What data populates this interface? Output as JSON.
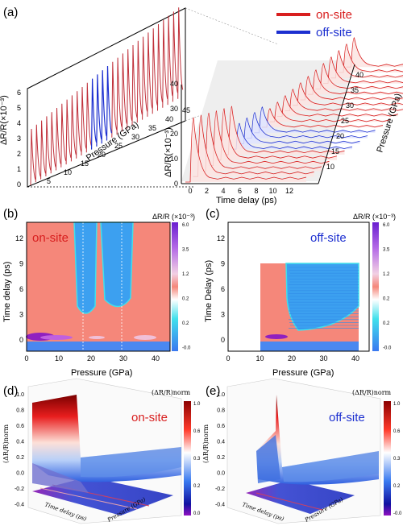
{
  "legend": {
    "onsite": {
      "label": "on-site",
      "color": "#d81e1e"
    },
    "offsite": {
      "label": "off-site",
      "color": "#1c2fd0"
    }
  },
  "panel_a": {
    "label": "(a)",
    "left_axis": {
      "label": "ΔR/R(×10⁻³)",
      "ticks": [
        "0",
        "1",
        "2",
        "3",
        "4",
        "5",
        "6"
      ]
    },
    "pressure_axis": {
      "label": "Pressure (GPa)",
      "ticks": [
        "5",
        "10",
        "15",
        "20",
        "25",
        "30",
        "35",
        "40",
        "45"
      ]
    },
    "right_axis": {
      "label": "ΔR/R(×10⁻³)",
      "ticks": [
        "0",
        "10",
        "20",
        "30",
        "40"
      ]
    },
    "time_axis": {
      "label": "Time delay (ps)",
      "ticks": [
        "0",
        "2",
        "4",
        "6",
        "8",
        "10",
        "12"
      ]
    },
    "side_axis": {
      "label": "Pressure (GPa)",
      "ticks": [
        "10",
        "15",
        "20",
        "25",
        "30",
        "35",
        "40"
      ]
    }
  },
  "panel_b": {
    "label": "(b)",
    "tag": "on-site",
    "xlabel": "Pressure (GPa)",
    "ylabel": "Time delay (ps)",
    "xticks": [
      "0",
      "10",
      "20",
      "30",
      "40"
    ],
    "yticks": [
      "12",
      "9",
      "6",
      "3",
      "0"
    ],
    "cbar_title": "ΔR/R (×10⁻³)",
    "cbar_ticks": [
      "6.0",
      "3.5",
      "1.2",
      "0.2",
      "0.2",
      "-0.0"
    ]
  },
  "panel_c": {
    "label": "(c)",
    "tag": "off-site",
    "xlabel": "Pressure (GPa)",
    "ylabel": "Time Delay (ps)",
    "xticks": [
      "0",
      "10",
      "20",
      "30",
      "40"
    ],
    "yticks": [
      "12",
      "9",
      "6",
      "3",
      "0"
    ],
    "cbar_title": "ΔR/R (×10⁻³)",
    "cbar_ticks": [
      "6.0",
      "3.5",
      "1.2",
      "0.2",
      "0.2",
      "-0.0"
    ]
  },
  "panel_d": {
    "label": "(d)",
    "tag": "on-site",
    "zlabel": "(ΔR/R)norm",
    "zticks": [
      "1.0",
      "0.8",
      "0.6",
      "0.4",
      "0.2",
      "0.0",
      "-0.2",
      "-0.4"
    ],
    "cbar_title": "(ΔR/R)norm",
    "cbar_ticks": [
      "1.0",
      "0.6",
      "0.3",
      "0.2",
      "0.0"
    ],
    "xlabel": "Time delay (ps)",
    "ylabel": "Pressure (GPa)"
  },
  "panel_e": {
    "label": "(e)",
    "tag": "off-site",
    "zlabel": "(ΔR/R)norm",
    "zticks": [
      "1.0",
      "0.8",
      "0.6",
      "0.4",
      "0.2",
      "0.0",
      "-0.2",
      "-0.4"
    ],
    "cbar_title": "(ΔR/R)norm",
    "cbar_ticks": [
      "1.0",
      "0.6",
      "0.3",
      "0.2",
      "-0.0"
    ],
    "xlabel": "Time delay (ps)",
    "ylabel": "Pressure (GPa)"
  }
}
